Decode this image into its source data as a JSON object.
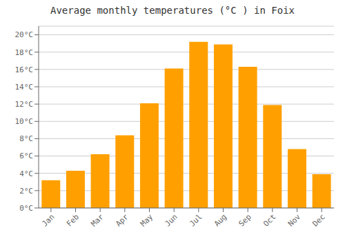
{
  "chart_data": {
    "type": "bar",
    "title": "Average monthly temperatures (°C ) in Foix",
    "categories": [
      "Jan",
      "Feb",
      "Mar",
      "Apr",
      "May",
      "Jun",
      "Jul",
      "Aug",
      "Sep",
      "Oct",
      "Nov",
      "Dec"
    ],
    "values": [
      3.2,
      4.3,
      6.2,
      8.4,
      12.1,
      16.1,
      19.2,
      18.9,
      16.3,
      11.9,
      6.8,
      3.9
    ],
    "color": "#FFA000",
    "ylim": [
      0,
      21
    ],
    "yticks": [
      {
        "value": 0,
        "label": "0°C"
      },
      {
        "value": 2,
        "label": "2°C"
      },
      {
        "value": 4,
        "label": "4°C"
      },
      {
        "value": 6,
        "label": "6°C"
      },
      {
        "value": 8,
        "label": "8°C"
      },
      {
        "value": 10,
        "label": "10°C"
      },
      {
        "value": 12,
        "label": "12°C"
      },
      {
        "value": 14,
        "label": "14°C"
      },
      {
        "value": 16,
        "label": "16°C"
      },
      {
        "value": 18,
        "label": "18°C"
      },
      {
        "value": 20,
        "label": "20°C"
      }
    ],
    "grid": true
  }
}
